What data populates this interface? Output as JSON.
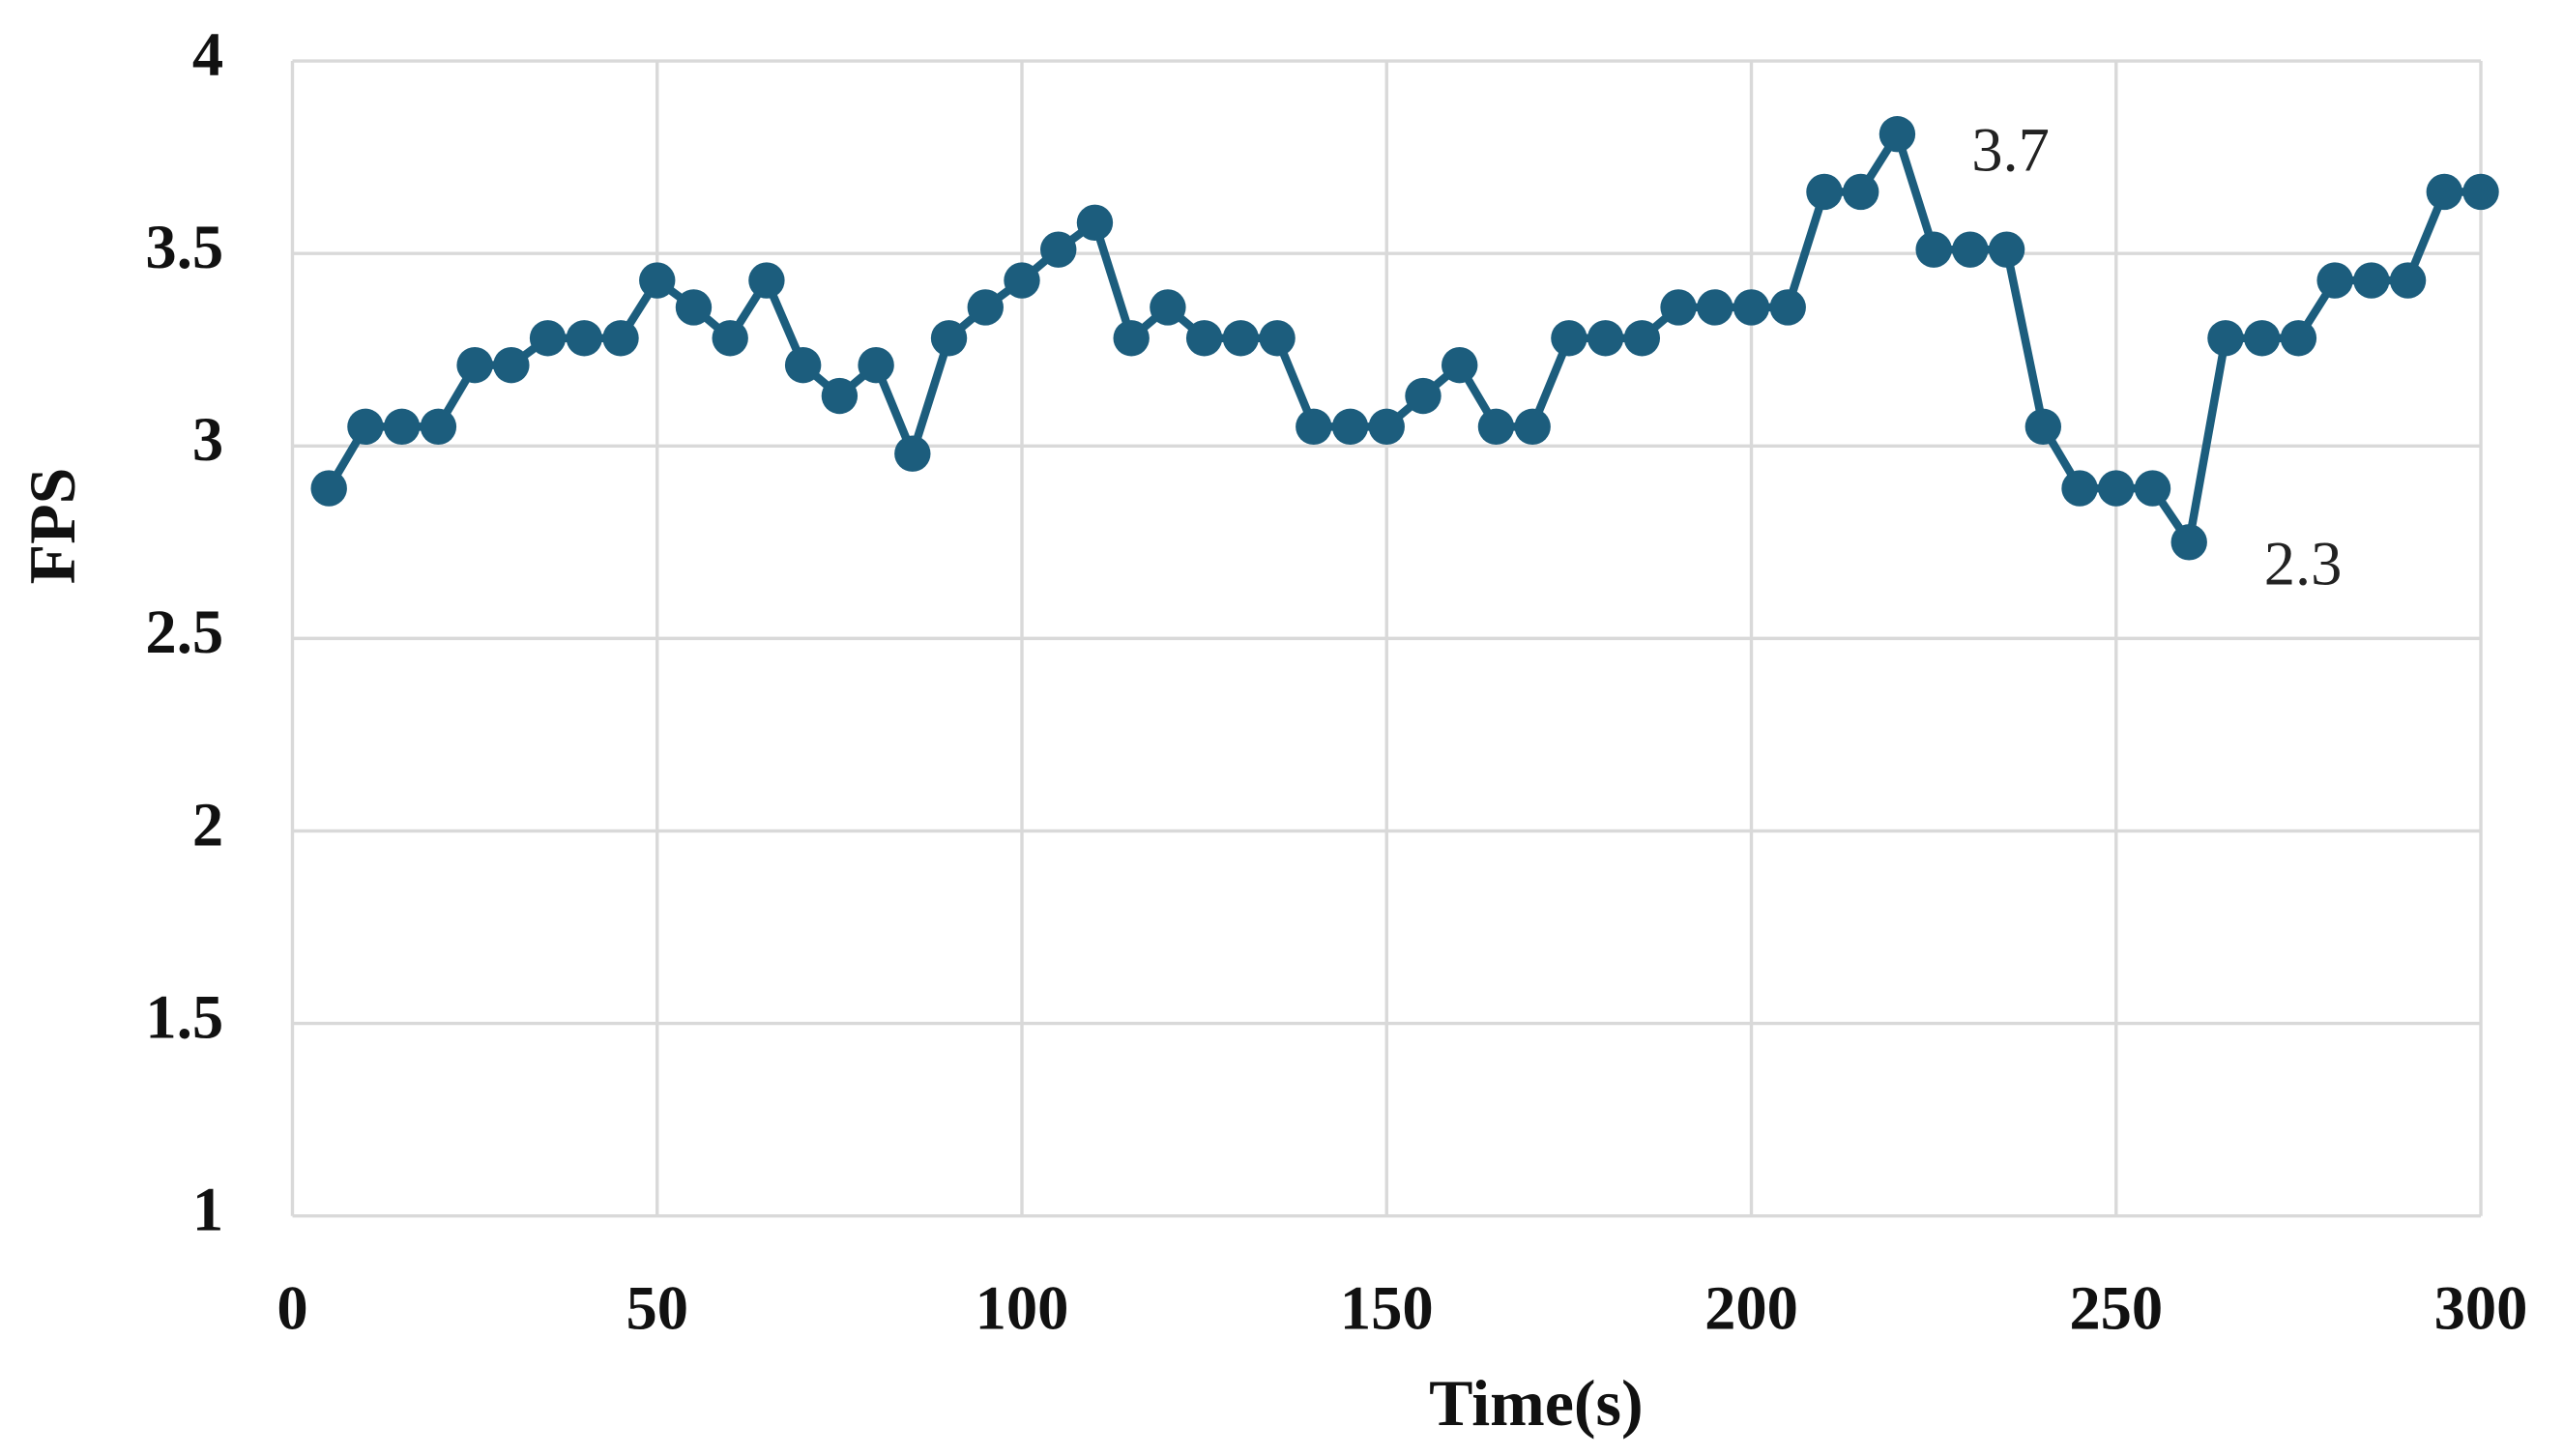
{
  "chart_data": {
    "type": "line",
    "y_label": "FPS",
    "x_label": "Time(s)",
    "x": [
      5,
      10,
      15,
      20,
      25,
      30,
      35,
      40,
      45,
      50,
      55,
      60,
      65,
      70,
      75,
      80,
      85,
      90,
      95,
      100,
      105,
      110,
      115,
      120,
      125,
      130,
      135,
      140,
      145,
      150,
      155,
      160,
      165,
      170,
      175,
      180,
      185,
      190,
      195,
      200,
      205,
      210,
      215,
      220,
      225,
      230,
      235,
      240,
      245,
      250,
      255,
      260,
      265,
      270,
      275,
      280,
      285,
      290,
      295,
      300
    ],
    "values": [
      2.89,
      3.05,
      3.05,
      3.05,
      3.21,
      3.21,
      3.28,
      3.28,
      3.28,
      3.43,
      3.36,
      3.28,
      3.43,
      3.21,
      3.13,
      3.21,
      2.98,
      3.28,
      3.36,
      3.43,
      3.51,
      3.58,
      3.28,
      3.36,
      3.28,
      3.28,
      3.28,
      3.05,
      3.05,
      3.05,
      3.13,
      3.21,
      3.05,
      3.05,
      3.28,
      3.28,
      3.28,
      3.36,
      3.36,
      3.36,
      3.36,
      3.66,
      3.66,
      3.81,
      3.51,
      3.51,
      3.51,
      3.05,
      2.89,
      2.89,
      2.89,
      2.75,
      3.28,
      3.28,
      3.28,
      3.43,
      3.43,
      3.43,
      3.66,
      3.66
    ],
    "color": "#1c5d7d",
    "xlim": [
      0,
      300
    ],
    "xticks": [
      0,
      50,
      100,
      150,
      200,
      250,
      300
    ],
    "ylim": [
      1,
      4
    ],
    "yticks": [
      1,
      1.5,
      2,
      2.5,
      3,
      3.5,
      4
    ],
    "grid": true,
    "annotations": [
      "3.7",
      "2.3"
    ]
  }
}
